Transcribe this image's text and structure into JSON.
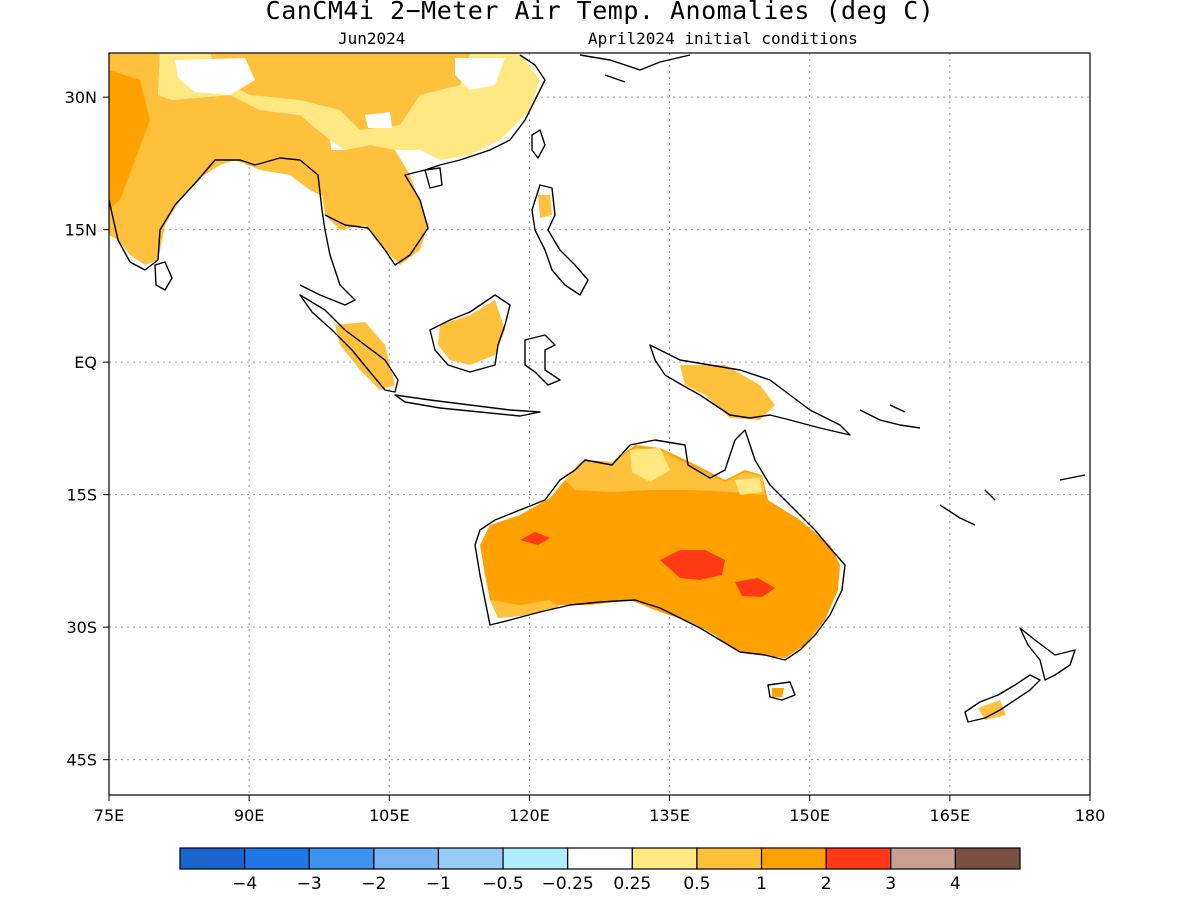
{
  "title": "CanCM4i 2−Meter Air Temp. Anomalies (deg C)",
  "subtitle_left": "Jun2024",
  "subtitle_right": "April2024 initial conditions",
  "map": {
    "lon_range": [
      75,
      180
    ],
    "lat_range": [
      -49,
      35
    ],
    "x_ticks": [
      "75E",
      "90E",
      "105E",
      "120E",
      "135E",
      "150E",
      "165E",
      "180"
    ],
    "y_ticks": [
      "30N",
      "15N",
      "EQ",
      "15S",
      "30S",
      "45S"
    ],
    "gridlines": "dotted",
    "land_outline_color": "#000000"
  },
  "colorbar": {
    "colors": [
      "#1a66cc",
      "#1f78e6",
      "#3d93f0",
      "#7ab4f5",
      "#96cdf5",
      "#b1eefb",
      "#ffffff",
      "#ffe782",
      "#ffc03c",
      "#ffa100",
      "#ff3a14",
      "#c8a092",
      "#7a5043"
    ],
    "labels": [
      "−4",
      "−3",
      "−2",
      "−1",
      "−0.5",
      "−0.25",
      "0.25",
      "0.5",
      "1",
      "2",
      "3",
      "4"
    ]
  },
  "anomaly_regions": [
    {
      "name": "india-south-asia",
      "level": "1",
      "color": "#ffc03c"
    },
    {
      "name": "china-indochina",
      "level": "0.5",
      "color": "#ffe782"
    },
    {
      "name": "australia",
      "level": "2",
      "color": "#ffa100"
    },
    {
      "name": "australia-hotspots",
      "level": "3",
      "color": "#ff3a14"
    }
  ]
}
